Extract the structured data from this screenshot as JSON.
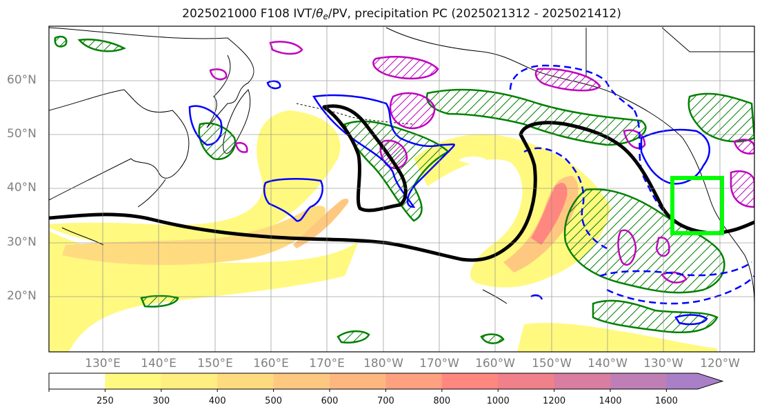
{
  "title": {
    "prefix": "2025021000 F108 IVT/",
    "theta": "θ",
    "sub": "e",
    "suffix": "/PV, precipitation PC (2025021312 - 2025021412)"
  },
  "lat_labels": [
    "60°N",
    "50°N",
    "40°N",
    "30°N",
    "20°N"
  ],
  "lon_labels": [
    "130°E",
    "140°E",
    "150°E",
    "160°E",
    "170°E",
    "180°W",
    "170°W",
    "160°W",
    "150°W",
    "140°W",
    "130°W",
    "120°W"
  ],
  "colorbar": {
    "ticks": [
      "250",
      "300",
      "400",
      "500",
      "600",
      "700",
      "800",
      "1000",
      "1200",
      "1400",
      "1600"
    ],
    "colors": [
      "#ffffff",
      "#fff980",
      "#ffee80",
      "#ffdb80",
      "#ffc880",
      "#ffb780",
      "#ffa080",
      "#ff8780",
      "#f0808a",
      "#d97ea0",
      "#bf7fb6",
      "#a97fc8"
    ]
  },
  "colors": {
    "theta_e_contour": "#000000",
    "pv_contour": "#0000ff",
    "precip_contour": "#008000",
    "pv_highlight": "#bf00bf",
    "target_box": "#00ff00"
  }
}
